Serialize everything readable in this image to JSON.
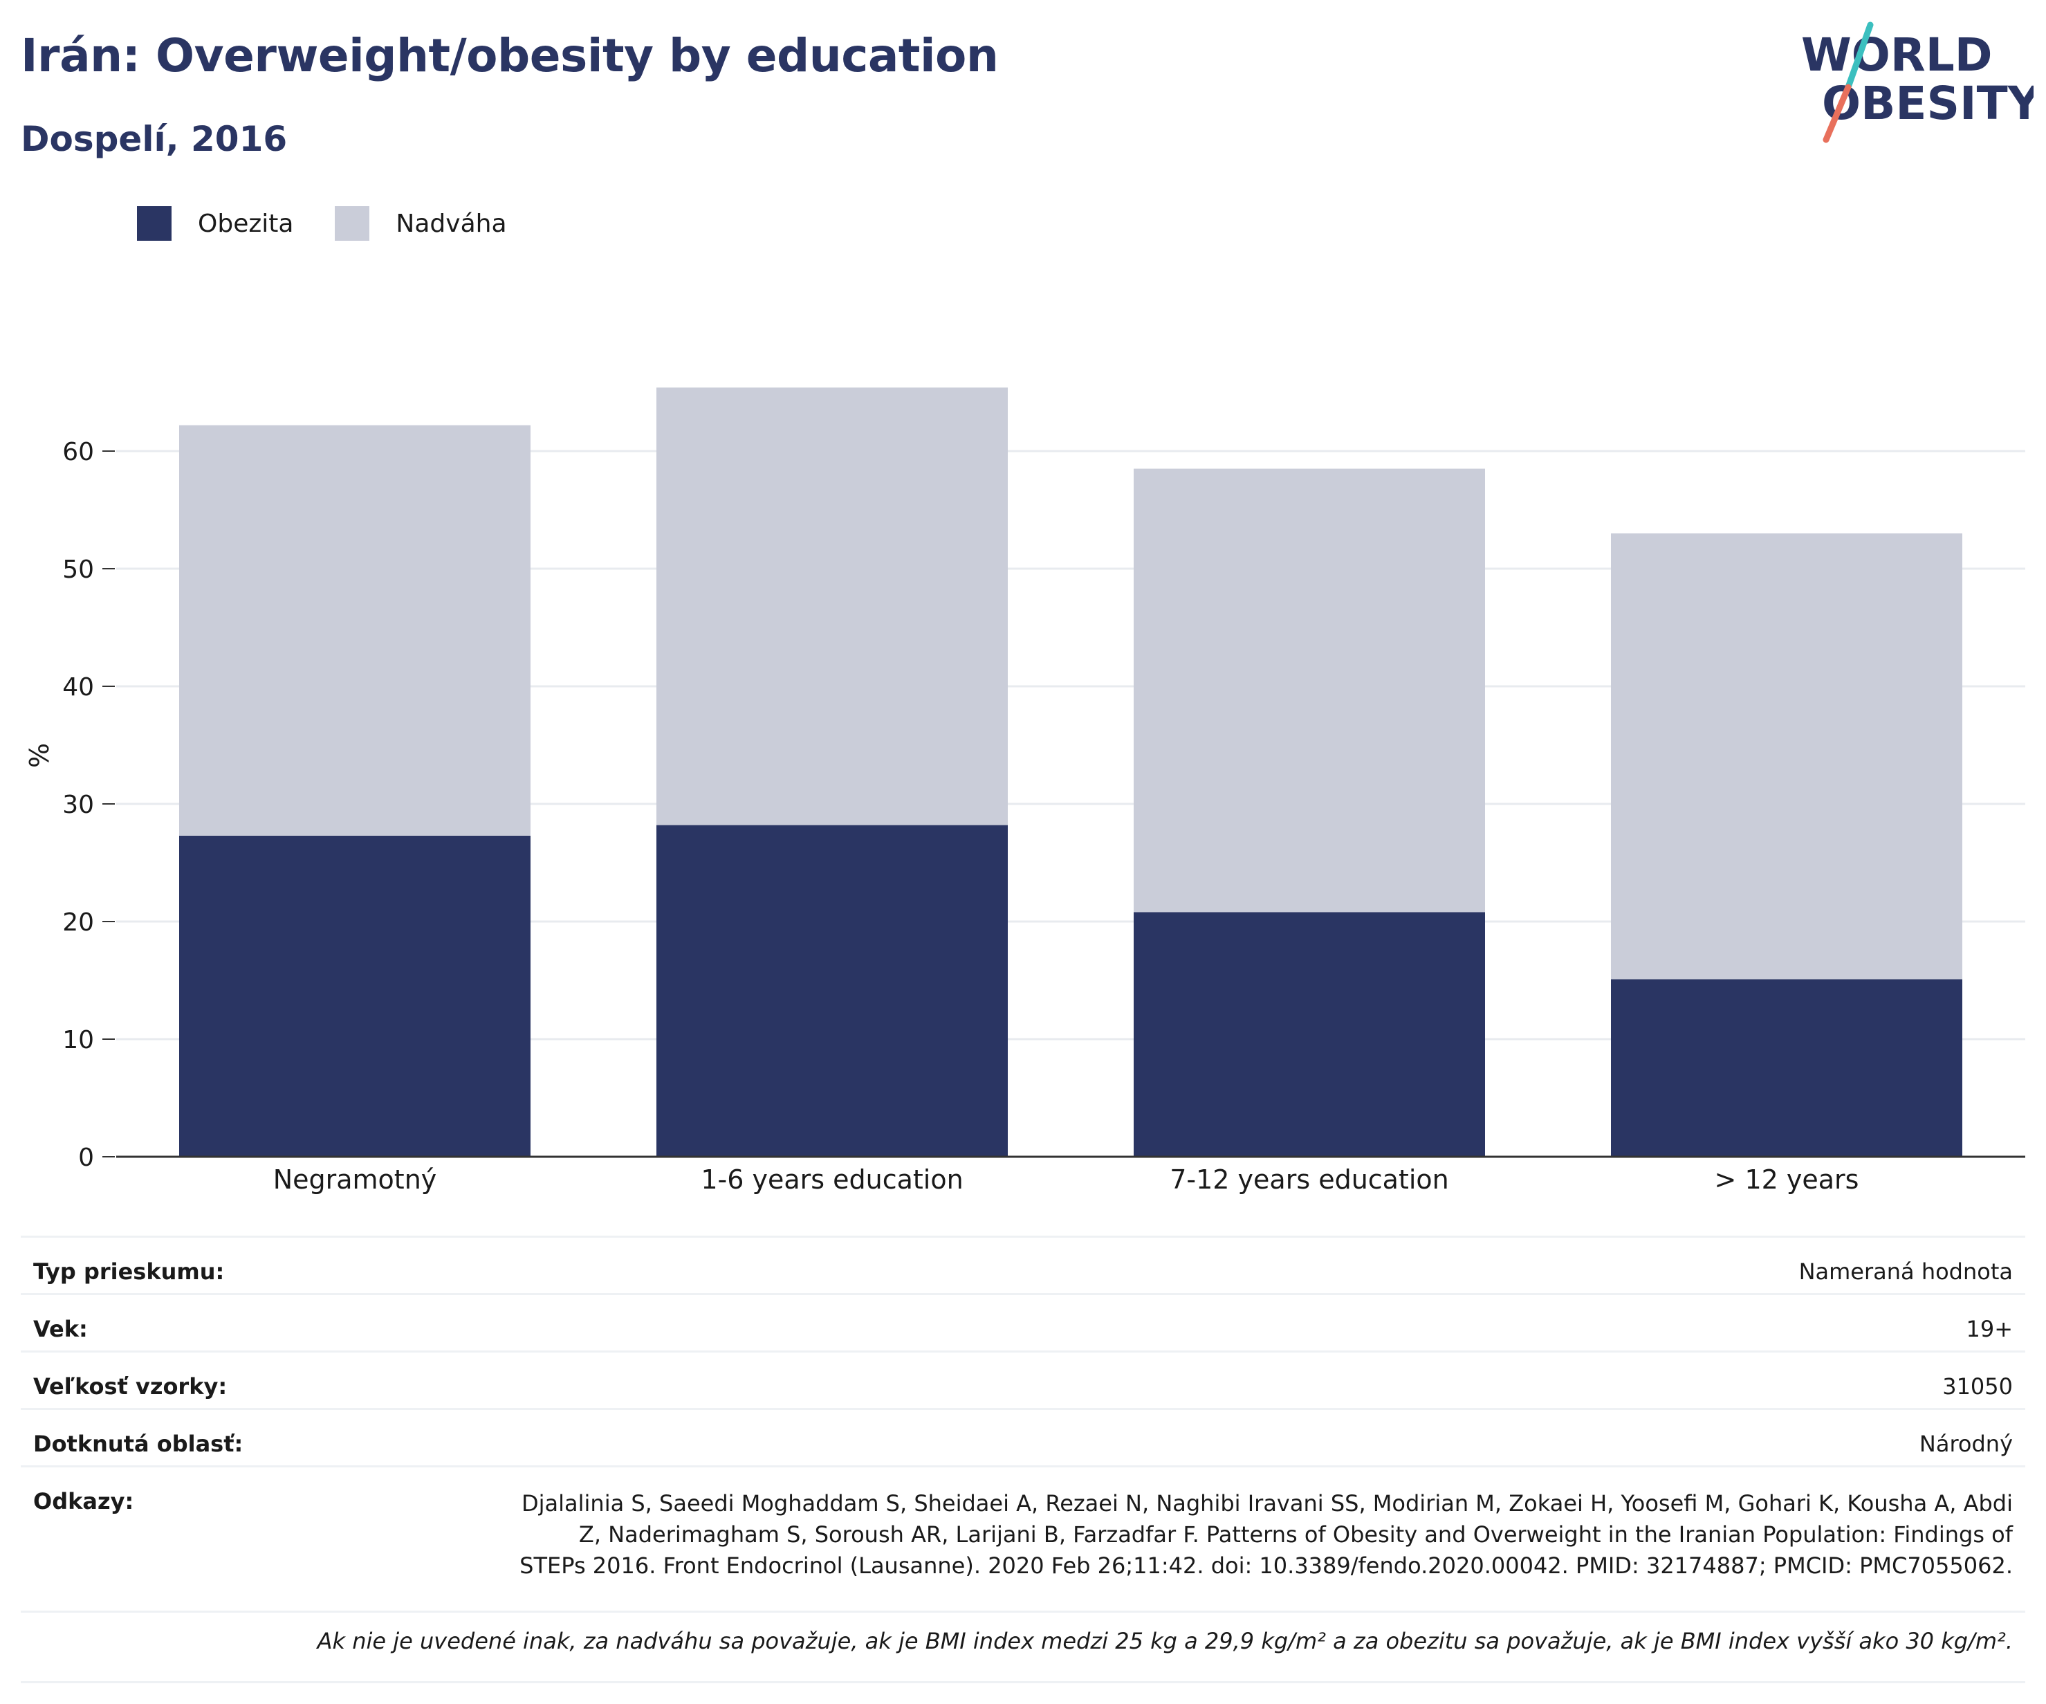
{
  "header": {
    "title": "Irán: Overweight/obesity by education",
    "subtitle": "Dospelí, 2016"
  },
  "logo": {
    "line1": "WORLD",
    "line2": "OBESITY",
    "name": "world-obesity-logo"
  },
  "colors": {
    "obesity": "#2a3563",
    "overweight": "#cacdd9",
    "title": "#2a3563",
    "grid": "#e8ebef",
    "logo_teal": "#3bbfbf",
    "logo_coral": "#e8705c"
  },
  "legend": [
    {
      "label": "Obezita",
      "color": "#2a3563"
    },
    {
      "label": "Nadváha",
      "color": "#cacdd9"
    }
  ],
  "chart_data": {
    "type": "bar",
    "stacked": true,
    "categories": [
      "Negramotný",
      "1-6 years education",
      "7-12 years education",
      "> 12 years"
    ],
    "series": [
      {
        "name": "Obezita",
        "values": [
          27.3,
          28.2,
          20.8,
          15.1
        ]
      },
      {
        "name": "Nadváha",
        "values": [
          34.9,
          37.2,
          37.7,
          37.9
        ]
      }
    ],
    "totals": [
      62.2,
      65.4,
      58.5,
      53.0
    ],
    "ylabel": "%",
    "ylim": [
      0,
      68
    ],
    "yticks": [
      0,
      10,
      20,
      30,
      40,
      50,
      60
    ],
    "grid": true,
    "legend_position": "top-left"
  },
  "info": {
    "rows": [
      {
        "key": "Typ prieskumu:",
        "value": "Nameraná hodnota"
      },
      {
        "key": "Vek:",
        "value": "19+"
      },
      {
        "key": "Veľkosť vzorky:",
        "value": "31050"
      },
      {
        "key": "Dotknutá oblasť:",
        "value": "Národný"
      }
    ],
    "references_key": "Odkazy:",
    "references_value": "Djalalinia S, Saeedi Moghaddam S, Sheidaei A, Rezaei N, Naghibi Iravani SS, Modirian M, Zokaei H, Yoosefi M, Gohari K, Kousha A, Abdi Z, Naderimagham S, Soroush AR, Larijani B, Farzadfar F. Patterns of Obesity and Overweight in the Iranian Population: Findings of STEPs 2016. Front Endocrinol (Lausanne). 2020 Feb 26;11:42. doi: 10.3389/fendo.2020.00042. PMID: 32174887; PMCID: PMC7055062.",
    "note": "Ak nie je uvedené inak, za nadváhu sa považuje, ak je BMI index medzi 25 kg a 29,9 kg/m² a za obezitu sa považuje, ak je BMI index vyšší ako 30 kg/m²."
  }
}
